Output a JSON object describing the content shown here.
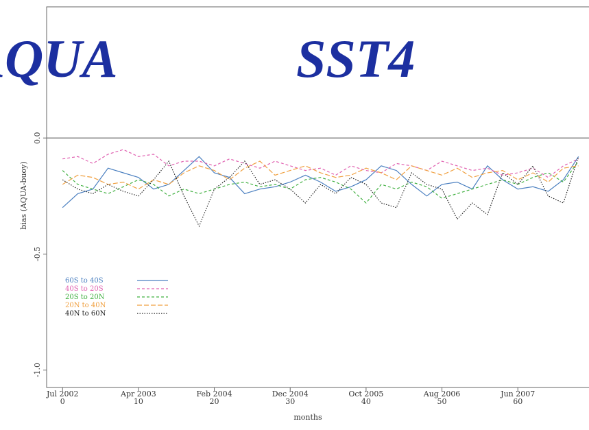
{
  "chart_data": {
    "type": "line",
    "title": "AQUA",
    "subtitle": "SST4",
    "x_label": "months",
    "y_label": "bias (AQUA-buoy)",
    "xlim": [
      -2.1,
      72
    ],
    "ylim": [
      -1.075,
      0.565
    ],
    "xticks": [
      0,
      10,
      20,
      30,
      40,
      50,
      60,
      70
    ],
    "xtick_dates": [
      "Jul 2002",
      "Apr 2003",
      "Feb 2004",
      "Dec 2004",
      "Oct 2005",
      "Aug 2006",
      "Jun 2007"
    ],
    "yticks": [
      {
        "value": -1,
        "label": "-1.0"
      },
      {
        "value": -0.5,
        "label": "-0.5"
      },
      {
        "value": 0,
        "label": "0.0"
      }
    ],
    "reference_line": 0,
    "legend": "left",
    "x": [
      0,
      2,
      4,
      6,
      8,
      10,
      12,
      14,
      16,
      18,
      20,
      22,
      24,
      26,
      28,
      30,
      32,
      34,
      36,
      38,
      40,
      42,
      44,
      46,
      48,
      50,
      52,
      54,
      56,
      58,
      60,
      62,
      64,
      66,
      68
    ],
    "series": [
      {
        "name": "60S to 40S",
        "color": "#4a7fc0",
        "style": "solid",
        "values": [
          -0.3,
          -0.24,
          -0.22,
          -0.13,
          -0.15,
          -0.17,
          -0.22,
          -0.2,
          -0.14,
          -0.08,
          -0.15,
          -0.17,
          -0.24,
          -0.22,
          -0.21,
          -0.19,
          -0.16,
          -0.19,
          -0.23,
          -0.21,
          -0.18,
          -0.12,
          -0.14,
          -0.2,
          -0.25,
          -0.2,
          -0.19,
          -0.22,
          -0.12,
          -0.18,
          -0.22,
          -0.21,
          -0.23,
          -0.18,
          -0.08
        ]
      },
      {
        "name": "40S to 20S",
        "color": "#e060b0",
        "style": "dashed",
        "values": [
          -0.09,
          -0.08,
          -0.11,
          -0.07,
          -0.05,
          -0.08,
          -0.07,
          -0.12,
          -0.1,
          -0.1,
          -0.12,
          -0.09,
          -0.11,
          -0.13,
          -0.1,
          -0.12,
          -0.14,
          -0.13,
          -0.16,
          -0.12,
          -0.14,
          -0.15,
          -0.11,
          -0.12,
          -0.14,
          -0.1,
          -0.12,
          -0.14,
          -0.13,
          -0.16,
          -0.15,
          -0.13,
          -0.17,
          -0.12,
          -0.09
        ]
      },
      {
        "name": "20S to 20N",
        "color": "#40b040",
        "style": "dashed",
        "values": [
          -0.14,
          -0.2,
          -0.22,
          -0.24,
          -0.21,
          -0.18,
          -0.2,
          -0.25,
          -0.22,
          -0.24,
          -0.22,
          -0.2,
          -0.19,
          -0.21,
          -0.2,
          -0.22,
          -0.18,
          -0.17,
          -0.19,
          -0.22,
          -0.28,
          -0.2,
          -0.22,
          -0.19,
          -0.21,
          -0.26,
          -0.24,
          -0.22,
          -0.2,
          -0.18,
          -0.2,
          -0.17,
          -0.15,
          -0.19,
          -0.1
        ]
      },
      {
        "name": "20N to 40N",
        "color": "#f0a040",
        "style": "longdash",
        "values": [
          -0.2,
          -0.16,
          -0.17,
          -0.2,
          -0.19,
          -0.22,
          -0.18,
          -0.2,
          -0.15,
          -0.12,
          -0.14,
          -0.18,
          -0.13,
          -0.1,
          -0.16,
          -0.14,
          -0.12,
          -0.15,
          -0.17,
          -0.16,
          -0.13,
          -0.15,
          -0.18,
          -0.12,
          -0.14,
          -0.16,
          -0.13,
          -0.17,
          -0.15,
          -0.14,
          -0.18,
          -0.15,
          -0.19,
          -0.13,
          -0.12
        ]
      },
      {
        "name": "40N to 60N",
        "color": "#222222",
        "style": "dotted",
        "values": [
          -0.18,
          -0.22,
          -0.24,
          -0.2,
          -0.23,
          -0.25,
          -0.18,
          -0.1,
          -0.25,
          -0.38,
          -0.22,
          -0.17,
          -0.1,
          -0.2,
          -0.18,
          -0.22,
          -0.28,
          -0.2,
          -0.24,
          -0.17,
          -0.2,
          -0.28,
          -0.3,
          -0.15,
          -0.2,
          -0.22,
          -0.35,
          -0.28,
          -0.33,
          -0.15,
          -0.2,
          -0.12,
          -0.25,
          -0.28,
          -0.08
        ]
      }
    ]
  }
}
